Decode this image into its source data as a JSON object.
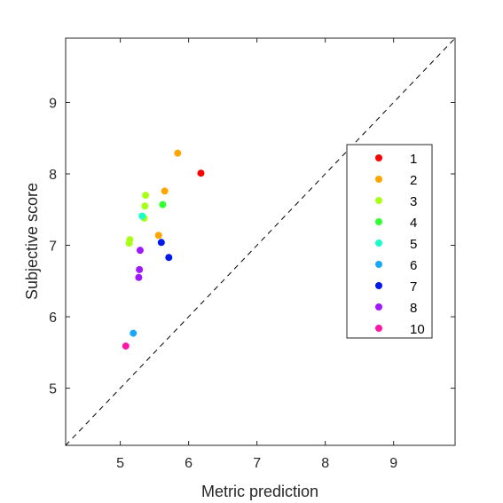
{
  "chart_data": {
    "type": "scatter",
    "title": "",
    "xlabel": "Metric prediction",
    "ylabel": "Subjective score",
    "xlim": [
      4.2,
      9.9
    ],
    "ylim": [
      4.2,
      9.9
    ],
    "xticks": [
      5,
      6,
      7,
      8,
      9
    ],
    "yticks": [
      5,
      6,
      7,
      8,
      9
    ],
    "grid": false,
    "reference_line": "y = x (dashed)",
    "legend_position": "right",
    "series": [
      {
        "name": "1",
        "color": "#ff0000",
        "points": [
          [
            6.18,
            8.01
          ]
        ]
      },
      {
        "name": "2",
        "color": "#ffa500",
        "points": [
          [
            5.84,
            8.29
          ],
          [
            5.65,
            7.76
          ],
          [
            5.56,
            7.14
          ]
        ]
      },
      {
        "name": "3",
        "color": "#a8ff1a",
        "points": [
          [
            5.37,
            7.7
          ],
          [
            5.36,
            7.55
          ],
          [
            5.35,
            7.38
          ],
          [
            5.14,
            7.08
          ],
          [
            5.13,
            7.03
          ]
        ]
      },
      {
        "name": "4",
        "color": "#33ff33",
        "points": [
          [
            5.62,
            7.57
          ]
        ]
      },
      {
        "name": "5",
        "color": "#1affc8",
        "points": [
          [
            5.32,
            7.41
          ]
        ]
      },
      {
        "name": "6",
        "color": "#1aa8ff",
        "points": [
          [
            5.19,
            5.77
          ]
        ]
      },
      {
        "name": "7",
        "color": "#0018e8",
        "points": [
          [
            5.6,
            7.04
          ],
          [
            5.71,
            6.83
          ]
        ]
      },
      {
        "name": "8",
        "color": "#a018ff",
        "points": [
          [
            5.29,
            6.93
          ],
          [
            5.28,
            6.66
          ],
          [
            5.27,
            6.55
          ]
        ]
      },
      {
        "name": "10",
        "color": "#ff18a8",
        "points": [
          [
            5.08,
            5.59
          ]
        ]
      }
    ]
  }
}
